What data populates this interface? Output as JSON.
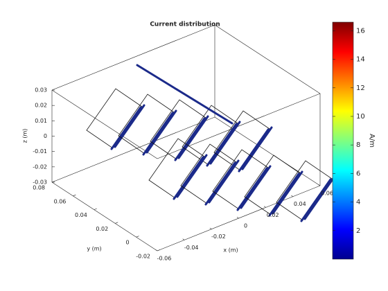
{
  "chart_data": {
    "type": "surface3d",
    "title": "Current distribution",
    "xlabel": "x (m)",
    "ylabel": "y (m)",
    "zlabel": "z (m)",
    "xlim": [
      -0.06,
      0.06
    ],
    "ylim": [
      -0.02,
      0.08
    ],
    "zlim": [
      -0.03,
      0.03
    ],
    "xticks": [
      -0.06,
      -0.04,
      -0.02,
      0,
      0.02,
      0.04,
      0.06
    ],
    "yticks": [
      -0.02,
      0,
      0.02,
      0.04,
      0.06,
      0.08
    ],
    "zticks": [
      -0.03,
      -0.02,
      -0.01,
      0,
      0.01,
      0.02,
      0.03
    ],
    "colorbar": {
      "label": "A/m",
      "lim": [
        0,
        16.6
      ],
      "ticks": [
        2,
        4,
        6,
        8,
        10,
        12,
        14,
        16
      ],
      "colormap": "jet"
    }
  }
}
